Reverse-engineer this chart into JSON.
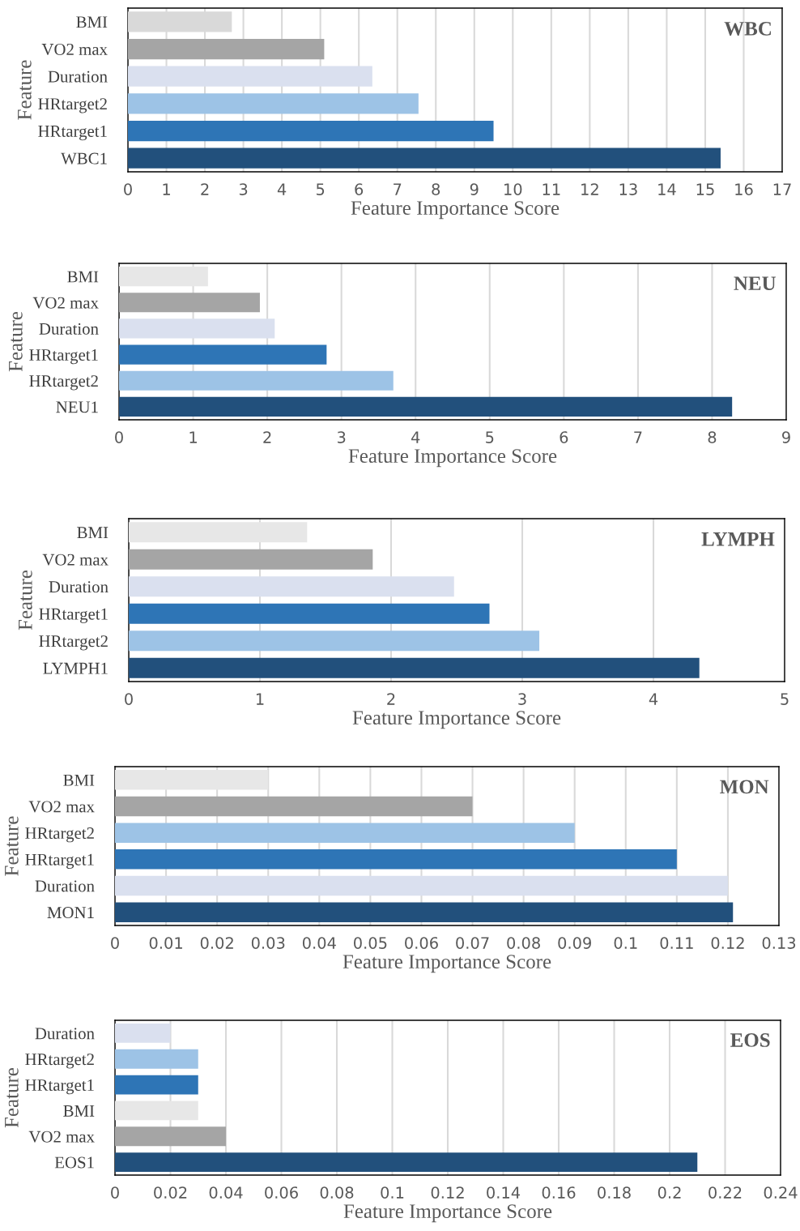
{
  "chart_data": [
    {
      "type": "bar",
      "orientation": "horizontal",
      "title": "WBC",
      "xlabel": "Feature Importance Score",
      "ylabel": "Feature",
      "categories": [
        "BMI",
        "VO2 max",
        "Duration",
        "HRtarget2",
        "HRtarget1",
        "WBC1"
      ],
      "values": [
        2.7,
        5.1,
        6.35,
        7.55,
        9.5,
        15.4
      ],
      "colors": [
        "#d9d9d9",
        "#a5a5a5",
        "#dae0ef",
        "#9dc3e6",
        "#2e75b6",
        "#22507c"
      ],
      "xlim": [
        0,
        17
      ],
      "xticks": [
        0,
        1,
        2,
        3,
        4,
        5,
        6,
        7,
        8,
        9,
        10,
        11,
        12,
        13,
        14,
        15,
        16,
        17
      ],
      "grid": "x"
    },
    {
      "type": "bar",
      "orientation": "horizontal",
      "title": "NEU",
      "xlabel": "Feature Importance Score",
      "ylabel": "Feature",
      "categories": [
        "BMI",
        "VO2 max",
        "Duration",
        "HRtarget1",
        "HRtarget2",
        "NEU1"
      ],
      "values": [
        1.2,
        1.9,
        2.1,
        2.8,
        3.7,
        8.27
      ],
      "colors": [
        "#e7e7e7",
        "#a5a5a5",
        "#dae0ef",
        "#2e75b6",
        "#9dc3e6",
        "#22507c"
      ],
      "xlim": [
        0,
        9
      ],
      "xticks": [
        0,
        1,
        2,
        3,
        4,
        5,
        6,
        7,
        8,
        9
      ],
      "grid": "x"
    },
    {
      "type": "bar",
      "orientation": "horizontal",
      "title": "LYMPH",
      "xlabel": "Feature Importance Score",
      "ylabel": "Feature",
      "categories": [
        "BMI",
        "VO2 max",
        "Duration",
        "HRtarget1",
        "HRtarget2",
        "LYMPH1"
      ],
      "values": [
        1.36,
        1.86,
        2.48,
        2.75,
        3.13,
        4.35
      ],
      "colors": [
        "#e7e7e7",
        "#a5a5a5",
        "#dae0ef",
        "#2e75b6",
        "#9dc3e6",
        "#22507c"
      ],
      "xlim": [
        0,
        5
      ],
      "xticks": [
        0,
        1,
        2,
        3,
        4,
        5
      ],
      "grid": "x"
    },
    {
      "type": "bar",
      "orientation": "horizontal",
      "title": "MON",
      "xlabel": "Feature Importance Score",
      "ylabel": "Feature",
      "categories": [
        "BMI",
        "VO2 max",
        "HRtarget2",
        "HRtarget1",
        "Duration",
        "MON1"
      ],
      "values": [
        0.03,
        0.07,
        0.09,
        0.11,
        0.12,
        0.121
      ],
      "colors": [
        "#e7e7e7",
        "#a5a5a5",
        "#9dc3e6",
        "#2e75b6",
        "#dae0ef",
        "#22507c"
      ],
      "xlim": [
        0,
        0.13
      ],
      "xticks": [
        0,
        0.01,
        0.02,
        0.03,
        0.04,
        0.05,
        0.06,
        0.07,
        0.08,
        0.09,
        0.1,
        0.11,
        0.12,
        0.13
      ],
      "grid": "x"
    },
    {
      "type": "bar",
      "orientation": "horizontal",
      "title": "EOS",
      "xlabel": "Feature Importance Score",
      "ylabel": "Feature",
      "categories": [
        "Duration",
        "HRtarget2",
        "HRtarget1",
        "BMI",
        "VO2 max",
        "EOS1"
      ],
      "values": [
        0.02,
        0.03,
        0.03,
        0.03,
        0.04,
        0.21
      ],
      "colors": [
        "#dae0ef",
        "#9dc3e6",
        "#2e75b6",
        "#e7e7e7",
        "#a5a5a5",
        "#22507c"
      ],
      "xlim": [
        0,
        0.24
      ],
      "xticks": [
        0,
        0.02,
        0.04,
        0.06,
        0.08,
        0.1,
        0.12,
        0.14,
        0.16,
        0.18,
        0.2,
        0.22,
        0.24
      ],
      "grid": "x"
    }
  ]
}
